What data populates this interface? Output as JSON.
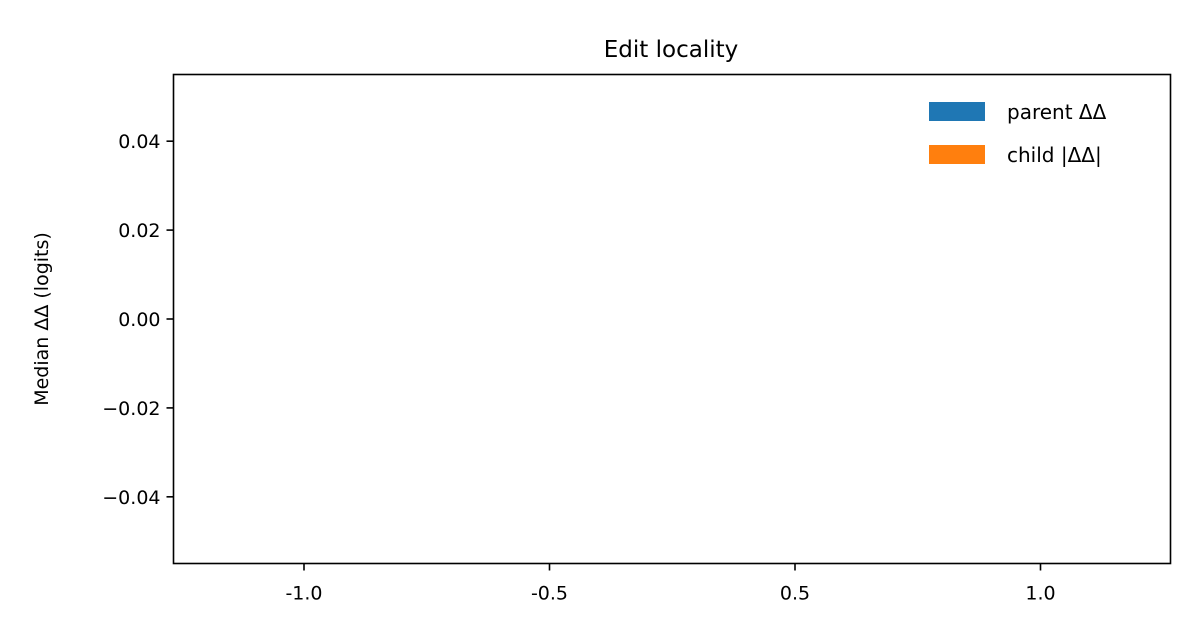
{
  "chart_data": {
    "type": "bar",
    "title": "Edit locality",
    "xlabel": "",
    "ylabel": "Median ΔΔ (logits)",
    "categories": [
      "-1.0",
      "-0.5",
      "0.5",
      "1.0"
    ],
    "series": [
      {
        "name": "parent ΔΔ",
        "color": "#1f77b4",
        "values": [
          0,
          0,
          0,
          0
        ]
      },
      {
        "name": "child |ΔΔ|",
        "color": "#ff7f0e",
        "values": [
          0,
          0,
          0,
          0
        ]
      }
    ],
    "ylim": [
      -0.055,
      0.055
    ],
    "yticks": [
      0.04,
      0.02,
      0.0,
      -0.02,
      -0.04
    ],
    "ytick_labels": [
      "0.04",
      "0.02",
      "0.00",
      "−0.02",
      "−0.04"
    ],
    "grid": false,
    "legend_position": "top-right"
  }
}
